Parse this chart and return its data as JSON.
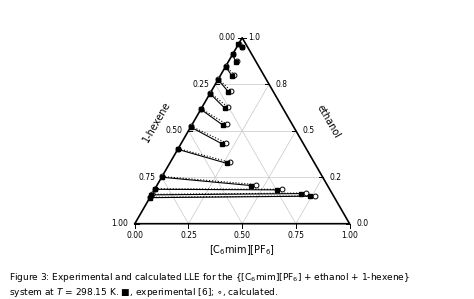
{
  "xlabel": "[C$_6$mim][PF$_6$]",
  "label_hexene": "1-hexene",
  "label_ethanol": "ethanol",
  "grid_color": "#c8c8c8",
  "tick_vals": [
    0.0,
    0.25,
    0.5,
    0.75,
    1.0
  ],
  "exp_tie_lines": [
    [
      [
        0.0,
        0.965
      ],
      [
        0.025,
        0.95
      ]
    ],
    [
      [
        0.0,
        0.91
      ],
      [
        0.035,
        0.87
      ]
    ],
    [
      [
        0.0,
        0.845
      ],
      [
        0.055,
        0.795
      ]
    ],
    [
      [
        0.0,
        0.775
      ],
      [
        0.08,
        0.71
      ]
    ],
    [
      [
        0.0,
        0.7
      ],
      [
        0.11,
        0.62
      ]
    ],
    [
      [
        0.0,
        0.615
      ],
      [
        0.145,
        0.53
      ]
    ],
    [
      [
        0.0,
        0.52
      ],
      [
        0.19,
        0.43
      ]
    ],
    [
      [
        0.0,
        0.4
      ],
      [
        0.265,
        0.325
      ]
    ],
    [
      [
        0.0,
        0.25
      ],
      [
        0.44,
        0.205
      ]
    ],
    [
      [
        0.0,
        0.185
      ],
      [
        0.57,
        0.182
      ]
    ],
    [
      [
        0.0,
        0.155
      ],
      [
        0.695,
        0.162
      ]
    ],
    [
      [
        0.0,
        0.14
      ],
      [
        0.74,
        0.148
      ]
    ]
  ],
  "calc_tie_lines": [
    [
      [
        0.0,
        0.968
      ],
      [
        0.025,
        0.952
      ]
    ],
    [
      [
        0.0,
        0.913
      ],
      [
        0.04,
        0.873
      ]
    ],
    [
      [
        0.0,
        0.848
      ],
      [
        0.062,
        0.8
      ]
    ],
    [
      [
        0.0,
        0.778
      ],
      [
        0.09,
        0.715
      ]
    ],
    [
      [
        0.0,
        0.703
      ],
      [
        0.122,
        0.626
      ]
    ],
    [
      [
        0.0,
        0.618
      ],
      [
        0.16,
        0.535
      ]
    ],
    [
      [
        0.0,
        0.524
      ],
      [
        0.205,
        0.436
      ]
    ],
    [
      [
        0.0,
        0.404
      ],
      [
        0.28,
        0.33
      ]
    ],
    [
      [
        0.0,
        0.254
      ],
      [
        0.46,
        0.21
      ]
    ],
    [
      [
        0.0,
        0.188
      ],
      [
        0.592,
        0.185
      ]
    ],
    [
      [
        0.0,
        0.158
      ],
      [
        0.715,
        0.165
      ]
    ],
    [
      [
        0.0,
        0.142
      ],
      [
        0.762,
        0.15
      ]
    ]
  ],
  "figsize": [
    4.74,
    2.99
  ],
  "dpi": 100,
  "caption_bold": "Figure 3:",
  "caption_rest": " Experimental and calculated LLE for the {[C$_6$mim][PF$_6$] + ethanol + 1-hexene}\nsystem at $T$ = 298.15 K. $\\blacksquare$, experimental [6]; $\\circ$, calculated."
}
